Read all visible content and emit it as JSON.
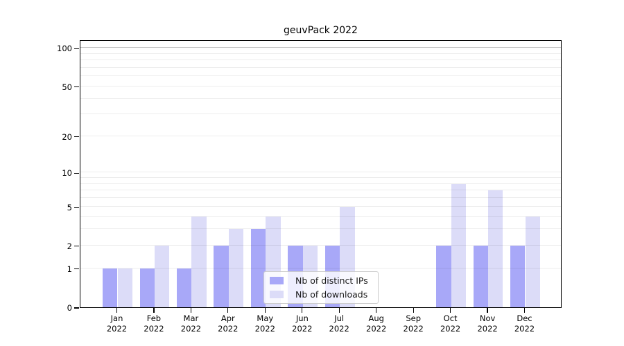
{
  "chart_data": {
    "type": "bar",
    "title": "geuvPack 2022",
    "scale": "log1p",
    "categories": [
      {
        "month": "Jan",
        "year": "2022"
      },
      {
        "month": "Feb",
        "year": "2022"
      },
      {
        "month": "Mar",
        "year": "2022"
      },
      {
        "month": "Apr",
        "year": "2022"
      },
      {
        "month": "May",
        "year": "2022"
      },
      {
        "month": "Jun",
        "year": "2022"
      },
      {
        "month": "Jul",
        "year": "2022"
      },
      {
        "month": "Aug",
        "year": "2022"
      },
      {
        "month": "Sep",
        "year": "2022"
      },
      {
        "month": "Oct",
        "year": "2022"
      },
      {
        "month": "Nov",
        "year": "2022"
      },
      {
        "month": "Dec",
        "year": "2022"
      }
    ],
    "series": [
      {
        "name": "Nb of distinct IPs",
        "color": "#a8a8f8",
        "values": [
          1,
          1,
          1,
          2,
          3,
          2,
          2,
          0,
          0,
          2,
          2,
          2
        ]
      },
      {
        "name": "Nb of downloads",
        "color": "#dcdcf8",
        "values": [
          1,
          2,
          4,
          3,
          4,
          2,
          5,
          0,
          0,
          8,
          7,
          4
        ]
      }
    ],
    "xlabel": "",
    "ylabel": "",
    "ylim": [
      0,
      116
    ],
    "yticks": [
      0,
      1,
      2,
      5,
      10,
      20,
      50,
      100
    ],
    "gridlines": [
      1,
      2,
      3,
      4,
      5,
      6,
      7,
      8,
      9,
      10,
      20,
      30,
      40,
      50,
      60,
      70,
      80,
      90,
      100
    ],
    "grid": "on",
    "legend_position": "lower center"
  },
  "colors": {
    "grid_minor": "rgba(0,0,0,0.07)",
    "grid_major": "rgba(0,0,0,0.24)",
    "axis": "#000000",
    "legend_border": "#cccccc"
  }
}
